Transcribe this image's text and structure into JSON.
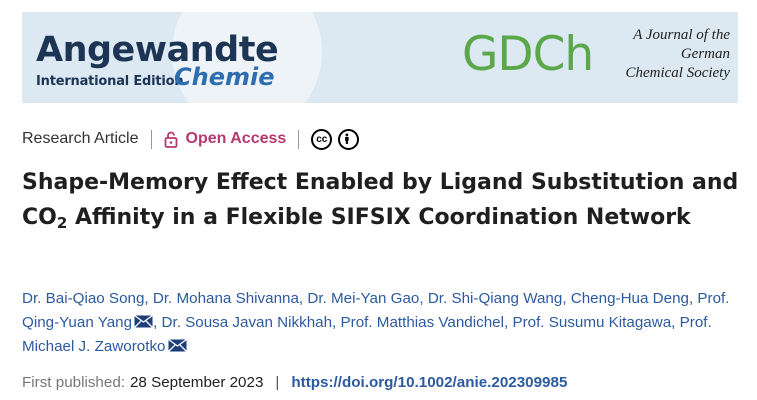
{
  "banner": {
    "journal_name": "Angewandte",
    "edition": "International Edition",
    "subtitle": "Chemie",
    "society_logo": "GDCh",
    "society_line1": "A Journal of the",
    "society_line2": "German",
    "society_line3": "Chemical Society"
  },
  "meta": {
    "article_type": "Research Article",
    "access_label": "Open Access",
    "license_icons": [
      "cc-icon",
      "attribution-icon"
    ],
    "access_color": "#b5396f"
  },
  "title": {
    "part1": "Shape-Memory Effect Enabled by Ligand Substitution and CO",
    "subscript": "2",
    "part2": " Affinity in a Flexible SIFSIX Coordination Network"
  },
  "authors": [
    {
      "name": "Dr. Bai-Qiao Song",
      "corresponding": false
    },
    {
      "name": "Dr. Mohana Shivanna",
      "corresponding": false
    },
    {
      "name": "Dr. Mei-Yan Gao",
      "corresponding": false
    },
    {
      "name": "Dr. Shi-Qiang Wang",
      "corresponding": false
    },
    {
      "name": "Cheng-Hua Deng",
      "corresponding": false
    },
    {
      "name": "Prof. Qing-Yuan Yang",
      "corresponding": true
    },
    {
      "name": "Dr. Sousa Javan Nikkhah",
      "corresponding": false
    },
    {
      "name": "Prof. Matthias Vandichel",
      "corresponding": false
    },
    {
      "name": "Prof. Susumu Kitagawa",
      "corresponding": false
    },
    {
      "name": "Prof. Michael J. Zaworotko",
      "corresponding": true
    }
  ],
  "publication": {
    "label": "First published:",
    "date": "28 September 2023",
    "separator": "|",
    "doi": "https://doi.org/10.1002/anie.202309985"
  },
  "colors": {
    "author_link": "#2c5aa0",
    "banner_bg": "#dce8f2",
    "gdch_green": "#5aa84a"
  }
}
